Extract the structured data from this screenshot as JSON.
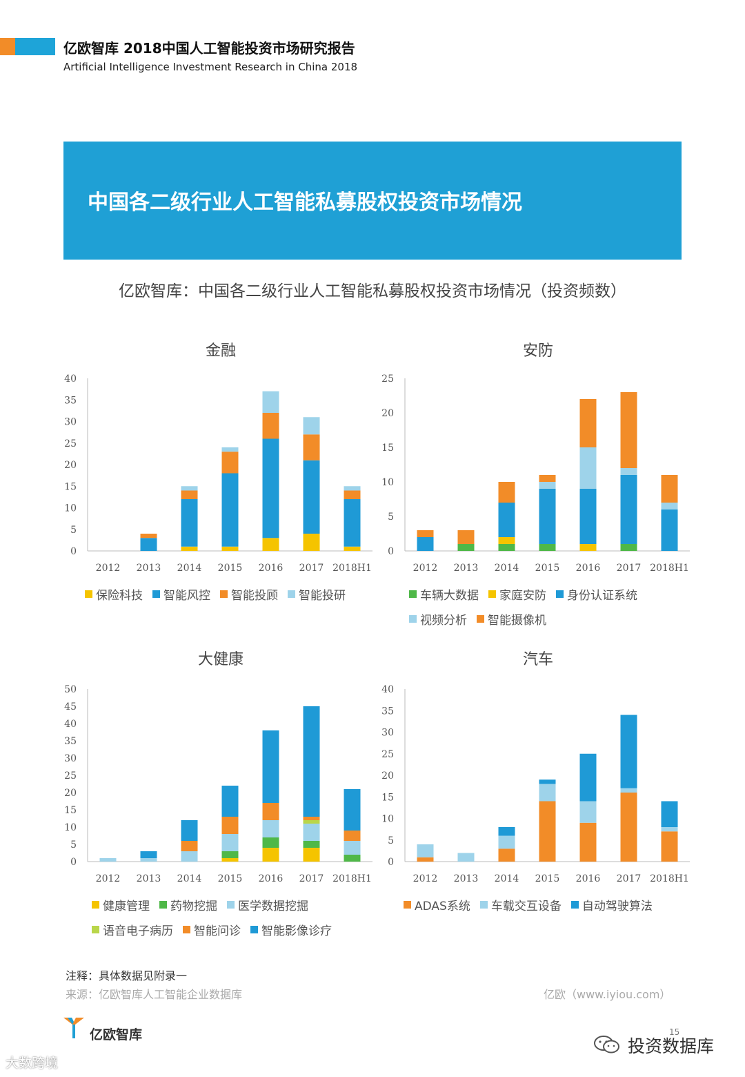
{
  "header": {
    "title": "亿欧智库 2018中国人工智能投资市场研究报告",
    "subtitle": "Artificial Intelligence Investment Research in China 2018"
  },
  "banner": {
    "title": "中国各二级行业人工智能私募股权投资市场情况"
  },
  "main_title": "亿欧智库：中国各二级行业人工智能私募股权投资市场情况（投资频数）",
  "colors": {
    "blue": "#1f9ad6",
    "orange": "#f28c28",
    "light_blue": "#9ed3ea",
    "yellow": "#f5c400",
    "green": "#4fb848",
    "lime": "#b9d64a"
  },
  "chart_data": [
    {
      "type": "bar",
      "stacked": true,
      "title": "金融",
      "categories": [
        "2012",
        "2013",
        "2014",
        "2015",
        "2016",
        "2017",
        "2018H1"
      ],
      "ylim": [
        0,
        40
      ],
      "yticks": [
        "0",
        "5",
        "10",
        "15",
        "20",
        "25",
        "30",
        "35",
        "40"
      ],
      "series": [
        {
          "name": "保险科技",
          "color": "#f5c400",
          "values": [
            0,
            0,
            1,
            1,
            3,
            4,
            1
          ]
        },
        {
          "name": "智能风控",
          "color": "#1f9ad6",
          "values": [
            0,
            3,
            11,
            17,
            23,
            17,
            11
          ]
        },
        {
          "name": "智能投顾",
          "color": "#f28c28",
          "values": [
            0,
            1,
            2,
            5,
            6,
            6,
            2
          ]
        },
        {
          "name": "智能投研",
          "color": "#9ed3ea",
          "values": [
            0,
            0,
            1,
            1,
            5,
            4,
            1
          ]
        }
      ]
    },
    {
      "type": "bar",
      "stacked": true,
      "title": "安防",
      "categories": [
        "2012",
        "2013",
        "2014",
        "2015",
        "2016",
        "2017",
        "2018H1"
      ],
      "ylim": [
        0,
        25
      ],
      "yticks": [
        "0",
        "5",
        "10",
        "15",
        "20",
        "25"
      ],
      "series": [
        {
          "name": "车辆大数据",
          "color": "#4fb848",
          "values": [
            0,
            1,
            1,
            1,
            0,
            1,
            0
          ]
        },
        {
          "name": "家庭安防",
          "color": "#f5c400",
          "values": [
            0,
            0,
            1,
            0,
            1,
            0,
            0
          ]
        },
        {
          "name": "身份认证系统",
          "color": "#1f9ad6",
          "values": [
            2,
            0,
            5,
            8,
            8,
            10,
            6
          ]
        },
        {
          "name": "视频分析",
          "color": "#9ed3ea",
          "values": [
            0,
            0,
            0,
            1,
            6,
            1,
            1
          ]
        },
        {
          "name": "智能摄像机",
          "color": "#f28c28",
          "values": [
            1,
            2,
            3,
            1,
            7,
            11,
            4
          ]
        }
      ]
    },
    {
      "type": "bar",
      "stacked": true,
      "title": "大健康",
      "categories": [
        "2012",
        "2013",
        "2014",
        "2015",
        "2016",
        "2017",
        "2018H1"
      ],
      "ylim": [
        0,
        50
      ],
      "yticks": [
        "0",
        "5",
        "10",
        "15",
        "20",
        "25",
        "30",
        "35",
        "40",
        "45",
        "50"
      ],
      "series": [
        {
          "name": "健康管理",
          "color": "#f5c400",
          "values": [
            0,
            0,
            0,
            1,
            4,
            4,
            0
          ]
        },
        {
          "name": "药物挖掘",
          "color": "#4fb848",
          "values": [
            0,
            0,
            0,
            2,
            3,
            2,
            2
          ]
        },
        {
          "name": "医学数据挖掘",
          "color": "#9ed3ea",
          "values": [
            1,
            1,
            3,
            5,
            5,
            5,
            4
          ]
        },
        {
          "name": "语音电子病历",
          "color": "#b9d64a",
          "values": [
            0,
            0,
            0,
            0,
            0,
            1,
            0
          ]
        },
        {
          "name": "智能问诊",
          "color": "#f28c28",
          "values": [
            0,
            0,
            3,
            5,
            5,
            1,
            3
          ]
        },
        {
          "name": "智能影像诊疗",
          "color": "#1f9ad6",
          "values": [
            0,
            2,
            6,
            9,
            21,
            32,
            12
          ]
        }
      ]
    },
    {
      "type": "bar",
      "stacked": true,
      "title": "汽车",
      "categories": [
        "2012",
        "2013",
        "2014",
        "2015",
        "2016",
        "2017",
        "2018H1"
      ],
      "ylim": [
        0,
        40
      ],
      "yticks": [
        "0",
        "5",
        "10",
        "15",
        "20",
        "25",
        "30",
        "35",
        "40"
      ],
      "series": [
        {
          "name": "ADAS系统",
          "color": "#f28c28",
          "values": [
            1,
            0,
            3,
            14,
            9,
            16,
            7
          ]
        },
        {
          "name": "车载交互设备",
          "color": "#9ed3ea",
          "values": [
            3,
            2,
            3,
            4,
            5,
            1,
            1
          ]
        },
        {
          "name": "自动驾驶算法",
          "color": "#1f9ad6",
          "values": [
            0,
            0,
            2,
            1,
            11,
            17,
            6
          ]
        }
      ]
    }
  ],
  "footer": {
    "note": "注释：具体数据见附录一",
    "source": "来源：亿欧智库人工智能企业数据库",
    "site": "亿欧（www.iyiou.com）",
    "page": "15",
    "logo_text": "亿欧智库",
    "watermark": "投资数据库",
    "watermark2": "大数跨境"
  }
}
